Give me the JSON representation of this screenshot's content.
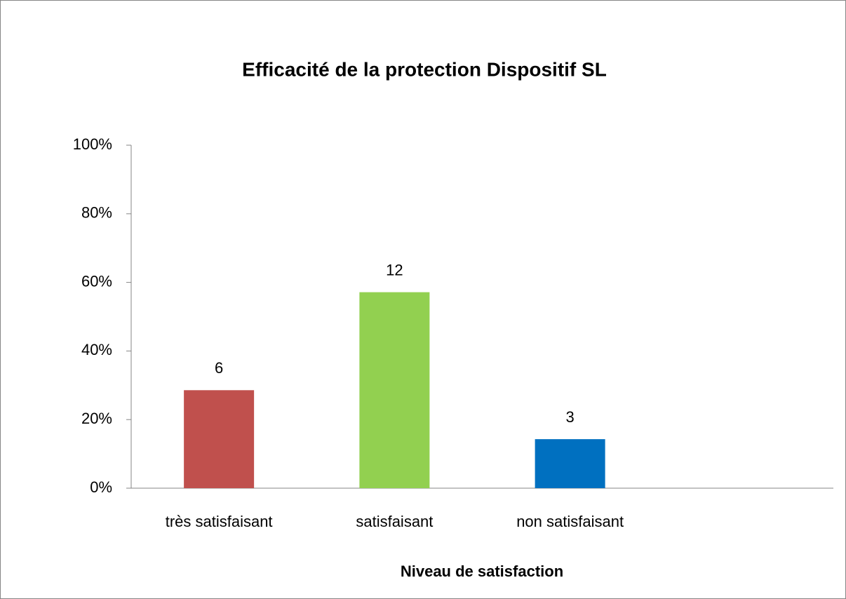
{
  "chart_data": {
    "type": "bar",
    "title": "Efficacité de la protection Dispositif SL",
    "x_label": "Niveau de satisfaction",
    "categories": [
      "très satisfaisant",
      "satisfaisant",
      "non satisfaisant"
    ],
    "values": [
      28.57,
      57.14,
      14.29
    ],
    "counts": [
      6,
      12,
      3
    ],
    "colors": [
      "#c0504d",
      "#92d050",
      "#0070c0"
    ],
    "ylim": [
      0,
      100
    ],
    "yticks": [
      {
        "value": 0,
        "label": "0%"
      },
      {
        "value": 20,
        "label": "20%"
      },
      {
        "value": 40,
        "label": "40%"
      },
      {
        "value": 60,
        "label": "60%"
      },
      {
        "value": 80,
        "label": "80%"
      },
      {
        "value": 100,
        "label": "100%"
      }
    ],
    "grid": false
  }
}
